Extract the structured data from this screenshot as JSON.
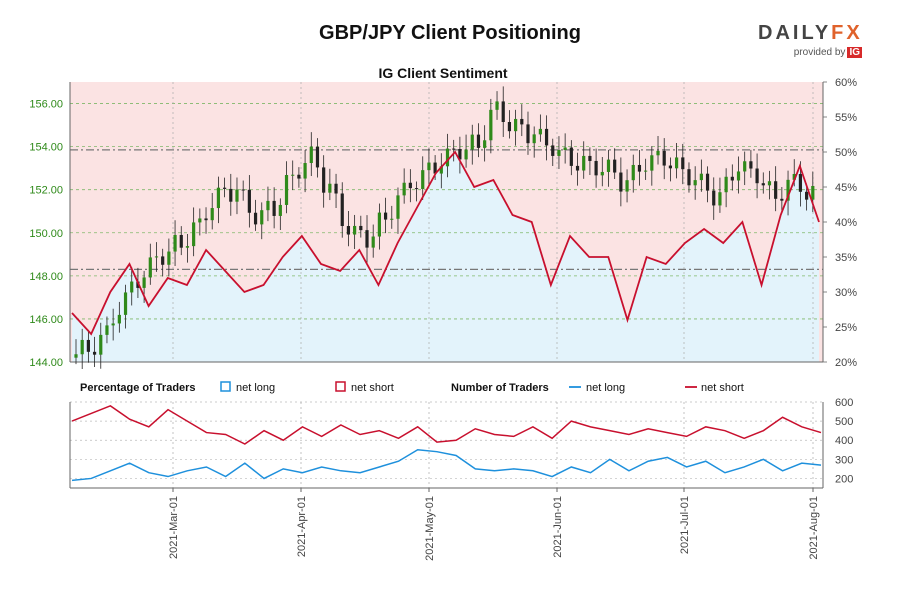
{
  "title": "GBP/JPY Client Positioning",
  "logo": {
    "brand_a": "DAILY",
    "brand_b": "FX",
    "provided_by": "provided by",
    "ig": "IG"
  },
  "chart_data": [
    {
      "type": "candlestick+line",
      "title": "IG Client Sentiment",
      "x_dates": [
        "2021-03-01",
        "2021-04-01",
        "2021-05-01",
        "2021-06-01",
        "2021-07-01",
        "2021-08-01"
      ],
      "left_axis": {
        "ticks": [
          "156.00",
          "154.00",
          "152.00",
          "150.00",
          "148.00",
          "146.00",
          "144.00"
        ],
        "ylim": [
          144.0,
          157.0
        ],
        "color": "#2f8a1a"
      },
      "right_axis": {
        "ticks": [
          "60%",
          "55%",
          "50%",
          "45%",
          "40%",
          "35%",
          "30%",
          "25%",
          "20%"
        ],
        "ylim": [
          20,
          60
        ]
      },
      "reference_levels": [
        153.85,
        148.3
      ],
      "series": [
        {
          "name": "net short",
          "color": "#c8102e",
          "unit": "%",
          "x": [
            0,
            4,
            8,
            12,
            16,
            20,
            24,
            28,
            32,
            36,
            40,
            44,
            48,
            52,
            56,
            60,
            64,
            68,
            72,
            76,
            80,
            84,
            88,
            92,
            96,
            100,
            104,
            108,
            112,
            116,
            120,
            124,
            128,
            132,
            136,
            140,
            144,
            148,
            152,
            156
          ],
          "values": [
            27,
            24,
            30,
            34,
            28,
            32,
            31,
            36,
            33,
            30,
            31,
            35,
            38,
            34,
            33,
            36,
            31,
            37,
            42,
            47,
            50,
            45,
            46,
            41,
            40,
            31,
            38,
            35,
            35,
            26,
            35,
            34,
            37,
            39,
            37,
            40,
            31,
            41,
            48,
            40
          ]
        }
      ],
      "candles_close": [
        144.6,
        145.3,
        146.8,
        148.0,
        149.0,
        149.6,
        150.4,
        151.6,
        151.9,
        150.8,
        151.2,
        152.6,
        153.5,
        152.0,
        150.2,
        149.8,
        150.7,
        151.9,
        152.5,
        153.2,
        153.9,
        154.2,
        155.8,
        154.8,
        154.5,
        154.0,
        153.5,
        153.2,
        152.9,
        152.2,
        153.2,
        153.6,
        153.0,
        152.3,
        151.5,
        153.0,
        152.8,
        151.8,
        152.4,
        151.7
      ]
    },
    {
      "type": "line",
      "legend": {
        "left_title": "Percentage of Traders",
        "left_items": [
          {
            "label": "net long",
            "color": "#1e90dc"
          },
          {
            "label": "net short",
            "color": "#c8102e"
          }
        ],
        "right_title": "Number of Traders",
        "right_items": [
          {
            "label": "net long",
            "color": "#1e90dc"
          },
          {
            "label": "net short",
            "color": "#c8102e"
          }
        ]
      },
      "ylim": [
        150,
        600
      ],
      "yticks": [
        "600",
        "500",
        "400",
        "300",
        "200"
      ],
      "xticks": [
        "2021-Mar-01",
        "2021-Apr-01",
        "2021-May-01",
        "2021-Jun-01",
        "2021-Jul-01",
        "2021-Aug-01"
      ],
      "series": [
        {
          "name": "net short",
          "color": "#c8102e",
          "values": [
            500,
            540,
            580,
            510,
            470,
            560,
            500,
            440,
            430,
            380,
            450,
            400,
            470,
            420,
            480,
            430,
            450,
            410,
            470,
            390,
            400,
            460,
            430,
            420,
            470,
            410,
            500,
            470,
            450,
            430,
            460,
            440,
            420,
            470,
            450,
            410,
            450,
            520,
            470,
            440
          ]
        },
        {
          "name": "net long",
          "color": "#1e90dc",
          "values": [
            190,
            200,
            240,
            280,
            230,
            210,
            240,
            260,
            210,
            280,
            200,
            250,
            230,
            260,
            240,
            230,
            260,
            290,
            350,
            340,
            320,
            250,
            240,
            250,
            240,
            210,
            260,
            230,
            300,
            240,
            290,
            310,
            260,
            290,
            230,
            260,
            300,
            240,
            280,
            270
          ]
        }
      ]
    }
  ]
}
